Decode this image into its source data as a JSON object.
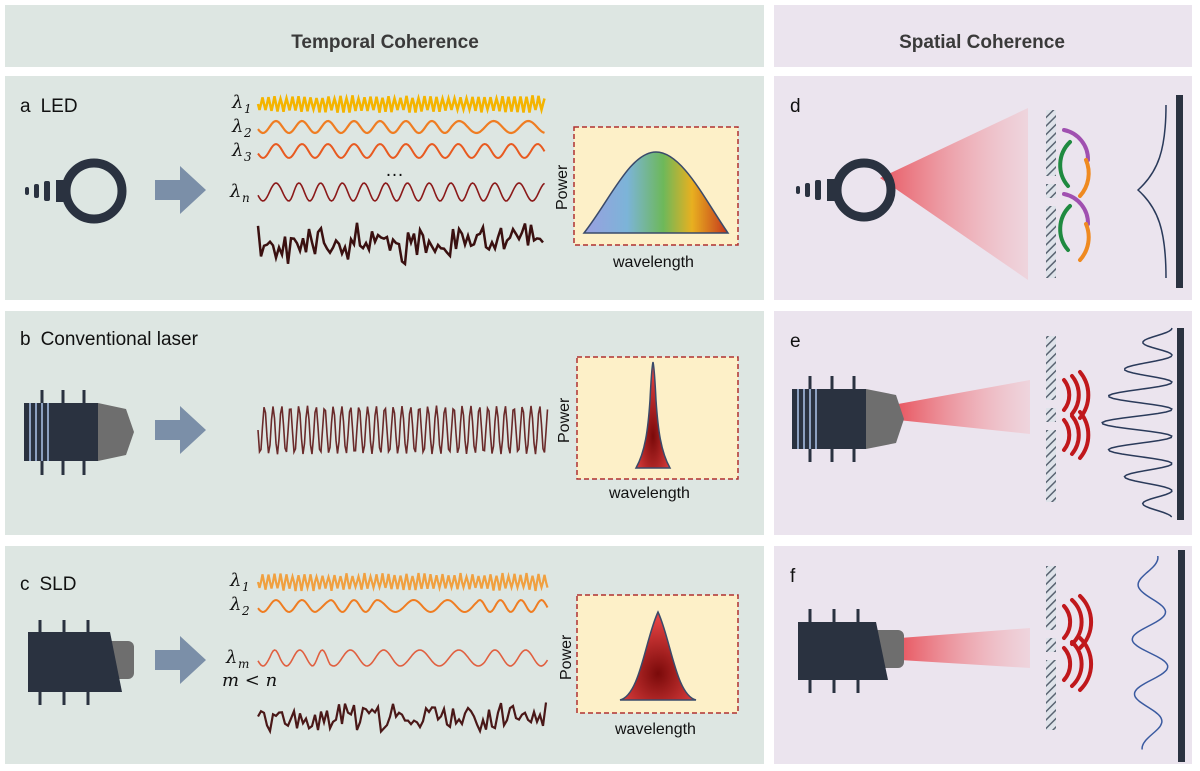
{
  "headers": {
    "temporal": "Temporal Coherence",
    "spatial": "Spatial Coherence"
  },
  "rows": [
    {
      "letter": "a",
      "name": "LED",
      "spatial_letter": "d",
      "wave_labels": [
        {
          "sym": "λ",
          "sub": "1"
        },
        {
          "sym": "λ",
          "sub": "2"
        },
        {
          "sym": "λ",
          "sub": "3"
        },
        {
          "sym": "λ",
          "sub": "n"
        }
      ],
      "ellipsis": "…"
    },
    {
      "letter": "b",
      "name": "Conventional laser",
      "spatial_letter": "e"
    },
    {
      "letter": "c",
      "name": "SLD",
      "spatial_letter": "f",
      "wave_labels": [
        {
          "sym": "λ",
          "sub": "1"
        },
        {
          "sym": "λ",
          "sub": "2"
        },
        {
          "sym": "λ",
          "sub": "m"
        }
      ],
      "condition": "m < n"
    }
  ],
  "spectrum": {
    "ylabel": "Power",
    "xlabel": "wavelength"
  },
  "colors": {
    "temporal_bg": "#dde6e2",
    "spatial_bg": "#ebe4ee",
    "device": "#2a3240",
    "arrow": "#7b8fa8",
    "inset_bg": "#fdf0c8",
    "inset_border": "#b03030",
    "laser_red": "#c0181c",
    "yellow": "#f4b400",
    "orange": "#ef7d22",
    "dark_noise": "#3a1010"
  }
}
